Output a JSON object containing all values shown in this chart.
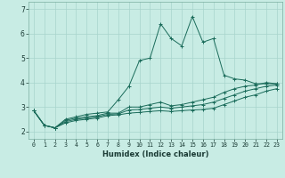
{
  "xlabel": "Humidex (Indice chaleur)",
  "ylabel": "",
  "bg_color": "#c8ece4",
  "grid_color": "#a8d4cc",
  "line_color": "#1a6b5a",
  "xlim": [
    -0.5,
    23.5
  ],
  "ylim": [
    1.7,
    7.3
  ],
  "xticks": [
    0,
    1,
    2,
    3,
    4,
    5,
    6,
    7,
    8,
    9,
    10,
    11,
    12,
    13,
    14,
    15,
    16,
    17,
    18,
    19,
    20,
    21,
    22,
    23
  ],
  "yticks": [
    2,
    3,
    4,
    5,
    6,
    7
  ],
  "series": [
    [
      2.85,
      2.25,
      2.15,
      2.5,
      2.6,
      2.7,
      2.75,
      2.8,
      3.3,
      3.85,
      4.9,
      5.0,
      6.4,
      5.8,
      5.5,
      6.7,
      5.65,
      5.8,
      4.3,
      4.15,
      4.1,
      3.95,
      3.95,
      3.95
    ],
    [
      2.85,
      2.25,
      2.15,
      2.45,
      2.55,
      2.6,
      2.65,
      2.75,
      2.75,
      3.0,
      3.0,
      3.1,
      3.2,
      3.05,
      3.1,
      3.2,
      3.3,
      3.4,
      3.6,
      3.75,
      3.85,
      3.9,
      4.0,
      3.95
    ],
    [
      2.85,
      2.25,
      2.15,
      2.4,
      2.5,
      2.55,
      2.6,
      2.7,
      2.72,
      2.88,
      2.9,
      2.95,
      3.0,
      2.95,
      3.0,
      3.05,
      3.1,
      3.2,
      3.35,
      3.5,
      3.65,
      3.75,
      3.85,
      3.9
    ],
    [
      2.85,
      2.25,
      2.15,
      2.35,
      2.45,
      2.5,
      2.55,
      2.65,
      2.68,
      2.75,
      2.78,
      2.82,
      2.85,
      2.82,
      2.85,
      2.88,
      2.9,
      2.95,
      3.1,
      3.25,
      3.4,
      3.5,
      3.65,
      3.75
    ]
  ]
}
